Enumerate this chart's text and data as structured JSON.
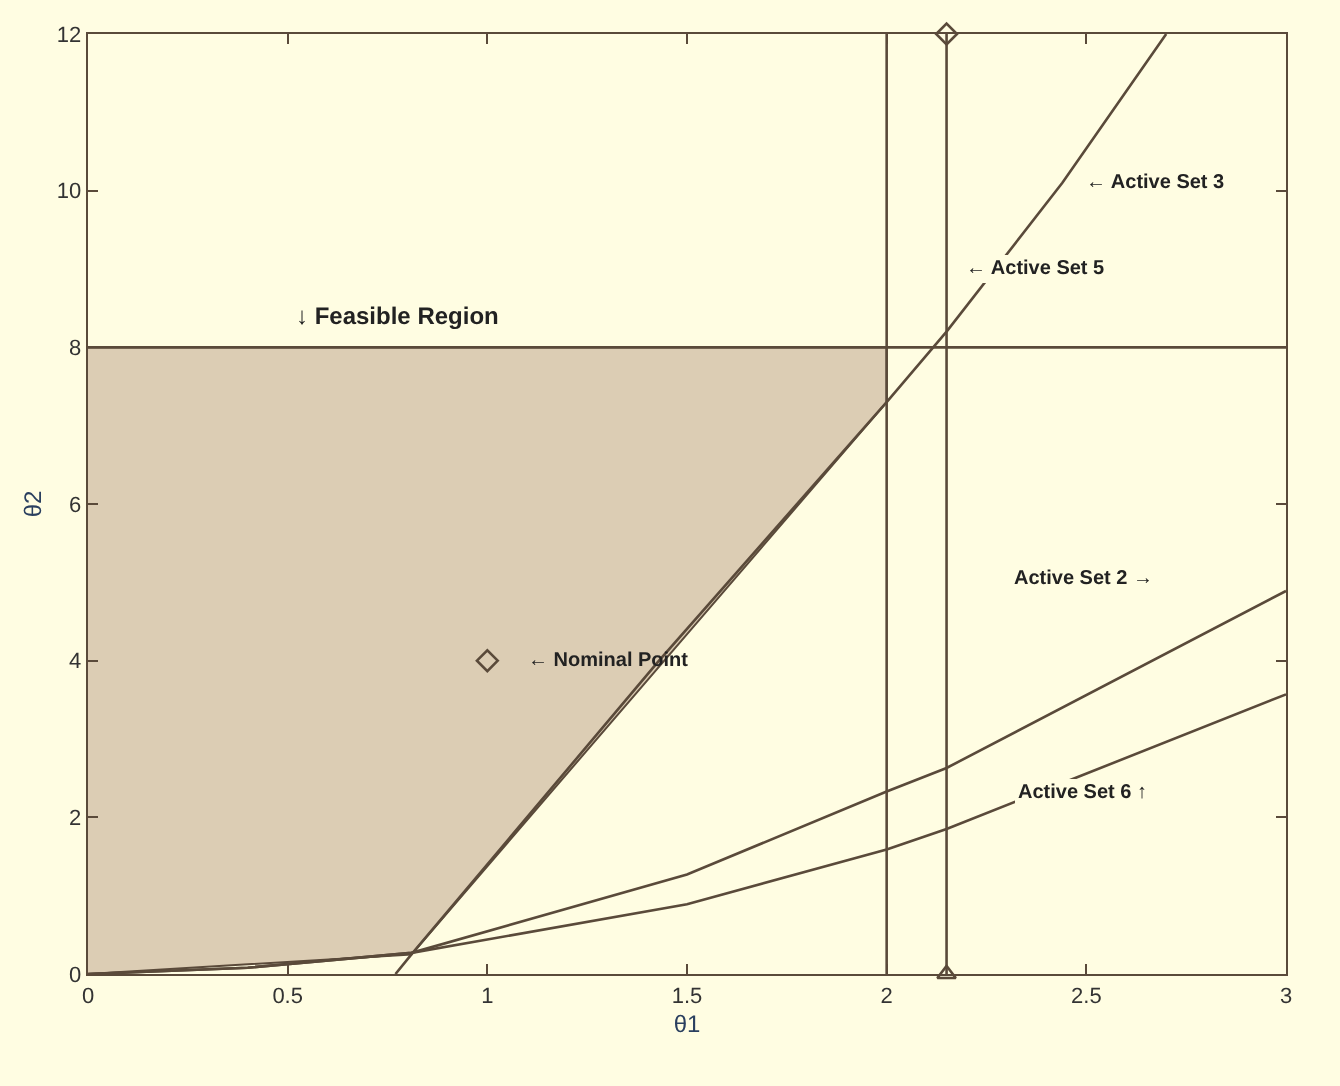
{
  "chart_data": {
    "type": "line",
    "xlabel": "θ1",
    "ylabel": "θ2",
    "xlim": [
      0,
      3
    ],
    "ylim": [
      0,
      12
    ],
    "xticks": [
      0,
      0.5,
      1,
      1.5,
      2,
      2.5,
      3
    ],
    "yticks": [
      0,
      2,
      4,
      6,
      8,
      10,
      12
    ],
    "grid": false,
    "line_style": "solid",
    "series": [
      {
        "type": "area",
        "color": "#dccdb4",
        "x": [
          0,
          0.81,
          2,
          2,
          0
        ],
        "values": [
          0,
          0.25,
          7.3,
          8,
          8
        ]
      },
      {
        "color": "#5a4a3a",
        "x": [
          0.77,
          0.81,
          1.43,
          2,
          2.15,
          2.44,
          2.7
        ],
        "values": [
          0,
          0.25,
          4.0,
          7.3,
          8.2,
          10.1,
          12
        ]
      },
      {
        "color": "#5a4a3a",
        "x": [
          0,
          0.4,
          0.81,
          1.5,
          2,
          2.15,
          3
        ],
        "values": [
          0,
          0.08,
          0.27,
          1.27,
          2.33,
          2.63,
          4.89
        ]
      },
      {
        "color": "#5a4a3a",
        "x": [
          0,
          0.4,
          0.81,
          1.5,
          2,
          2.15,
          3
        ],
        "values": [
          0,
          0.08,
          0.27,
          0.89,
          1.59,
          1.85,
          3.57
        ]
      },
      {
        "type": "scatter",
        "color": "#5a4a3a",
        "marker": "diamond",
        "x": [
          1
        ],
        "values": [
          4
        ]
      },
      {
        "type": "scatter",
        "color": "#5a4a3a",
        "marker": "diamond",
        "x": [
          2.15
        ],
        "values": [
          12
        ]
      },
      {
        "type": "scatter",
        "color": "#5a4a3a",
        "marker": "triangle",
        "x": [
          2.15
        ],
        "values": [
          0
        ]
      }
    ],
    "ref_lines": [
      {
        "axis": "x",
        "value": 2,
        "color": "#5a4a3a"
      },
      {
        "axis": "x",
        "value": 2.15,
        "color": "#5a4a3a"
      },
      {
        "axis": "y",
        "value": 8,
        "color": "#5a4a3a"
      }
    ],
    "annotations": [
      "↓ Feasible Region",
      {
        "text": "← Nominal Point",
        "x": 1,
        "y": 4
      },
      {
        "text": "← Active Set 3",
        "x": 2.47,
        "y": 10.1
      },
      {
        "text": "← Active Set 5",
        "x": 2.17,
        "y": 9.0
      },
      "Active Set 2 →",
      {
        "text": "Active Set 6 ↑",
        "x": 2.3,
        "y": 2.3
      }
    ]
  }
}
